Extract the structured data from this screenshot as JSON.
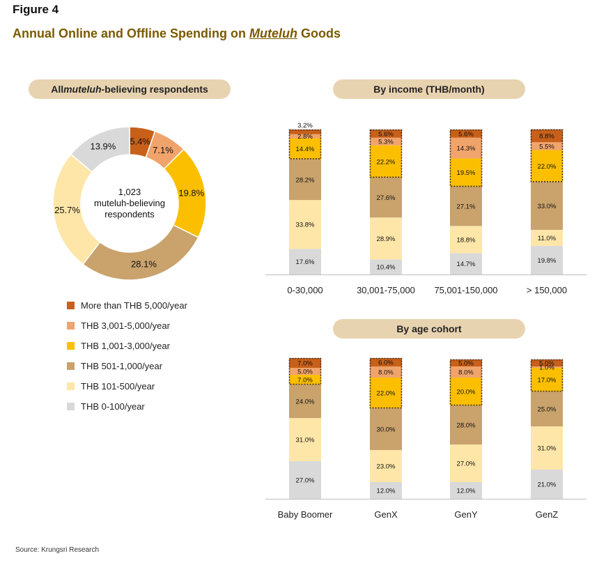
{
  "figure_label": "Figure 4",
  "title_prefix": "Annual Online and Offline Spending on ",
  "title_italic": "Muteluh",
  "title_suffix": " Goods",
  "source": "Source: Krungsri Research",
  "colors": {
    "more_than_5000": "#c8601a",
    "3001_5000": "#f0a46c",
    "1001_3000": "#fbbf00",
    "501_1000": "#c9a26c",
    "101_500": "#fde6a8",
    "0_100": "#d9d9d9",
    "pill": "#e8d3b0",
    "title": "#7a5a00"
  },
  "legend": [
    {
      "label": "More than THB 5,000/year",
      "color": "#c8601a"
    },
    {
      "label": "THB 3,001-5,000/year",
      "color": "#f0a46c"
    },
    {
      "label": "THB 1,001-3,000/year",
      "color": "#fbbf00"
    },
    {
      "label": "THB 501-1,000/year",
      "color": "#c9a26c"
    },
    {
      "label": "THB 101-500/year",
      "color": "#fde6a8"
    },
    {
      "label": "THB 0-100/year",
      "color": "#d9d9d9"
    }
  ],
  "chart_data": [
    {
      "type": "pie",
      "title_prefix": "All ",
      "title_italic": "muteluh",
      "title_suffix": "-believing respondents",
      "center_text": [
        "1,023",
        "muteluh-believing",
        "respondents"
      ],
      "slices": [
        {
          "label": "5.4%",
          "value": 5.4,
          "color": "#c8601a"
        },
        {
          "label": "7.1%",
          "value": 7.1,
          "color": "#f0a46c"
        },
        {
          "label": "19.8%",
          "value": 19.8,
          "color": "#fbbf00"
        },
        {
          "label": "28.1%",
          "value": 28.1,
          "color": "#c9a26c"
        },
        {
          "label": "25.7%",
          "value": 25.7,
          "color": "#fde6a8"
        },
        {
          "label": "13.9%",
          "value": 13.9,
          "color": "#d9d9d9"
        }
      ]
    },
    {
      "type": "bar",
      "stacked": true,
      "title": "By income (THB/month)",
      "categories": [
        "0-30,000",
        "30,001-75,000",
        "75,001-150,000",
        "> 150,000"
      ],
      "series": [
        {
          "name": "THB 0-100/year",
          "color": "#d9d9d9",
          "values": [
            17.6,
            10.4,
            14.7,
            19.8
          ],
          "labels": [
            "17.6%",
            "10.4%",
            "14.7%",
            "19.8%"
          ]
        },
        {
          "name": "THB 101-500/year",
          "color": "#fde6a8",
          "values": [
            33.8,
            28.9,
            18.8,
            11.0
          ],
          "labels": [
            "33.8%",
            "28.9%",
            "18.8%",
            "11.0%"
          ]
        },
        {
          "name": "THB 501-1,000/year",
          "color": "#c9a26c",
          "values": [
            28.2,
            27.6,
            27.1,
            33.0
          ],
          "labels": [
            "28.2%",
            "27.6%",
            "27.1%",
            "33.0%"
          ]
        },
        {
          "name": "THB 1,001-3,000/year",
          "color": "#fbbf00",
          "values": [
            14.4,
            22.2,
            19.5,
            22.0
          ],
          "labels": [
            "14.4%",
            "22.2%",
            "19.5%",
            "22.0%"
          ]
        },
        {
          "name": "THB 3,001-5,000/year",
          "color": "#f0a46c",
          "values": [
            2.8,
            5.3,
            14.3,
            5.5
          ],
          "labels": [
            "2.8%",
            "5.3%",
            "14.3%",
            "5.5%"
          ]
        },
        {
          "name": "More than THB 5,000/year",
          "color": "#c8601a",
          "values": [
            3.2,
            5.6,
            5.6,
            8.8
          ],
          "labels": [
            "3.2%",
            "5.6%",
            "5.6%",
            "8.8%"
          ]
        }
      ],
      "ylim": [
        0,
        100
      ]
    },
    {
      "type": "bar",
      "stacked": true,
      "title": "By age cohort",
      "categories": [
        "Baby Boomer",
        "GenX",
        "GenY",
        "GenZ"
      ],
      "series": [
        {
          "name": "THB 0-100/year",
          "color": "#d9d9d9",
          "values": [
            27.0,
            12.0,
            12.0,
            21.0
          ],
          "labels": [
            "27.0%",
            "12.0%",
            "12.0%",
            "21.0%"
          ]
        },
        {
          "name": "THB 101-500/year",
          "color": "#fde6a8",
          "values": [
            31.0,
            23.0,
            27.0,
            31.0
          ],
          "labels": [
            "31.0%",
            "23.0%",
            "27.0%",
            "31.0%"
          ]
        },
        {
          "name": "THB 501-1,000/year",
          "color": "#c9a26c",
          "values": [
            24.0,
            30.0,
            28.0,
            25.0
          ],
          "labels": [
            "24.0%",
            "30.0%",
            "28.0%",
            "25.0%"
          ]
        },
        {
          "name": "THB 1,001-3,000/year",
          "color": "#fbbf00",
          "values": [
            7.0,
            22.0,
            20.0,
            17.0
          ],
          "labels": [
            "7.0%",
            "22.0%",
            "20.0%",
            "17.0%"
          ]
        },
        {
          "name": "THB 3,001-5,000/year",
          "color": "#f0a46c",
          "values": [
            5.0,
            8.0,
            8.0,
            1.0
          ],
          "labels": [
            "5.0%",
            "8.0%",
            "8.0%",
            "1.0%"
          ]
        },
        {
          "name": "More than THB 5,000/year",
          "color": "#c8601a",
          "values": [
            7.0,
            6.0,
            5.0,
            5.0
          ],
          "labels": [
            "7.0%",
            "6.0%",
            "5.0%",
            "5.0%"
          ]
        }
      ],
      "ylim": [
        0,
        100
      ]
    }
  ]
}
